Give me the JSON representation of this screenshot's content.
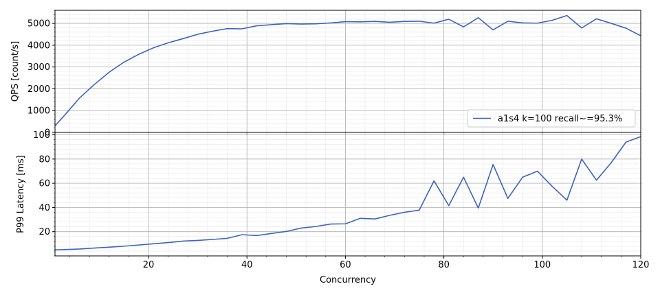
{
  "chart_data": [
    {
      "type": "line",
      "ylabel": "QPS [count/s]",
      "xlim": [
        1,
        120
      ],
      "ylim": [
        0,
        5600
      ],
      "xticks": [
        20,
        40,
        60,
        80,
        100,
        120
      ],
      "yticks": [
        0,
        1000,
        2000,
        3000,
        4000,
        5000
      ],
      "grid": true,
      "legend": "lower-right",
      "series": [
        {
          "name": "a1s4 k=100 recall~=95.3%",
          "color": "#3a62c4",
          "x": [
            1,
            3,
            6,
            9,
            12,
            15,
            18,
            21,
            24,
            27,
            30,
            33,
            36,
            39,
            42,
            45,
            48,
            51,
            54,
            57,
            60,
            63,
            66,
            69,
            72,
            75,
            78,
            81,
            84,
            87,
            90,
            93,
            96,
            99,
            102,
            105,
            108,
            111,
            114,
            117,
            120
          ],
          "y": [
            300,
            800,
            1580,
            2200,
            2760,
            3220,
            3580,
            3880,
            4110,
            4300,
            4500,
            4640,
            4760,
            4750,
            4890,
            4940,
            4990,
            4970,
            4980,
            5020,
            5080,
            5070,
            5090,
            5050,
            5090,
            5100,
            5010,
            5190,
            4840,
            5260,
            4700,
            5100,
            5020,
            5010,
            5140,
            5360,
            4790,
            5210,
            5000,
            4780,
            4430
          ]
        }
      ]
    },
    {
      "type": "line",
      "xlabel": "Concurrency",
      "ylabel": "P99 Latency [ms]",
      "xlim": [
        1,
        120
      ],
      "ylim": [
        0,
        102
      ],
      "xticks": [
        20,
        40,
        60,
        80,
        100,
        120
      ],
      "yticks": [
        20,
        40,
        60,
        80,
        100
      ],
      "grid": true,
      "series": [
        {
          "color": "#3a62c4",
          "x": [
            1,
            3,
            6,
            9,
            12,
            15,
            18,
            21,
            24,
            27,
            30,
            33,
            36,
            39,
            42,
            45,
            48,
            51,
            54,
            57,
            60,
            63,
            66,
            69,
            72,
            75,
            78,
            81,
            84,
            87,
            90,
            93,
            96,
            99,
            102,
            105,
            108,
            111,
            114,
            117,
            120
          ],
          "y": [
            5,
            5.2,
            5.7,
            6.5,
            7.2,
            8,
            9,
            10,
            11,
            12.2,
            12.8,
            13.6,
            14.5,
            17.5,
            16.8,
            18.5,
            20.2,
            23,
            24.3,
            26.3,
            26.5,
            31,
            30.5,
            33.5,
            36,
            37.8,
            62,
            41.5,
            65,
            39.5,
            75.5,
            47.5,
            65,
            70,
            57.5,
            46,
            80,
            62.5,
            77,
            94,
            98.5
          ]
        }
      ]
    }
  ]
}
